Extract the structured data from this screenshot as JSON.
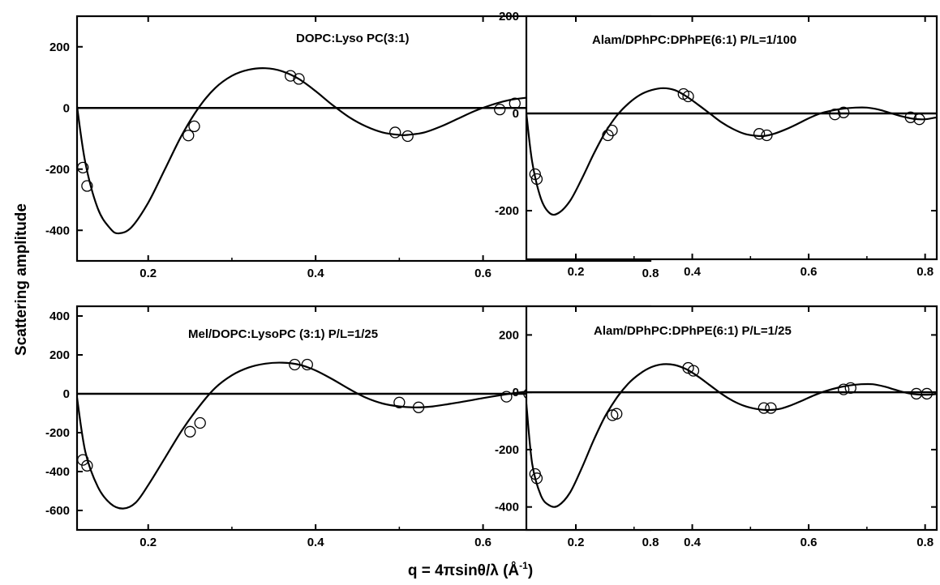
{
  "figure": {
    "ylabel": "Scattering amplitude",
    "xlabel_main": "q = 4πsinθ/λ (",
    "xlabel_unit": "Å",
    "xlabel_exp": "-1",
    "xlabel_close": ")"
  },
  "chart_data": [
    {
      "type": "line",
      "title": "DOPC:Lyso PC(3:1)",
      "xlim": [
        0.115,
        0.8
      ],
      "ylim": [
        -500,
        300
      ],
      "xticks": [
        "0.2",
        "0.4",
        "0.6",
        "0.8"
      ],
      "xtick_values": [
        0.2,
        0.4,
        0.6,
        0.8
      ],
      "yticks": [
        "-400",
        "-200",
        "0",
        "200"
      ],
      "ytick_values": [
        -400,
        -200,
        0,
        200
      ],
      "curve": {
        "x": [
          0.115,
          0.125,
          0.14,
          0.155,
          0.165,
          0.18,
          0.2,
          0.22,
          0.24,
          0.26,
          0.28,
          0.3,
          0.32,
          0.34,
          0.36,
          0.38,
          0.4,
          0.42,
          0.44,
          0.46,
          0.48,
          0.5,
          0.51,
          0.53,
          0.55,
          0.57,
          0.59,
          0.61,
          0.63,
          0.65,
          0.67,
          0.685,
          0.7,
          0.72,
          0.74,
          0.76,
          0.78,
          0.8
        ],
        "y": [
          5,
          -180,
          -330,
          -395,
          -410,
          -390,
          -310,
          -200,
          -90,
          0,
          65,
          105,
          125,
          130,
          120,
          95,
          55,
          10,
          -30,
          -60,
          -80,
          -88,
          -88,
          -80,
          -60,
          -35,
          -10,
          10,
          25,
          33,
          37,
          38,
          34,
          20,
          2,
          -12,
          -14,
          20
        ]
      },
      "points": {
        "x": [
          0.122,
          0.127,
          0.248,
          0.255,
          0.37,
          0.38,
          0.495,
          0.51,
          0.62,
          0.638,
          0.745,
          0.763
        ],
        "y": [
          -195,
          -255,
          -90,
          -60,
          105,
          95,
          -80,
          -92,
          -5,
          15,
          0,
          -18
        ]
      }
    },
    {
      "type": "line",
      "title": "Alam/DPhPC:DPhPE(6:1) P/L=1/100",
      "xlim": [
        0.115,
        0.82
      ],
      "ylim": [
        -300,
        200
      ],
      "xticks": [
        "0.2",
        "0.4",
        "0.6",
        "0.8"
      ],
      "xtick_values": [
        0.2,
        0.4,
        0.6,
        0.8
      ],
      "yticks": [
        "-200",
        "0",
        "200"
      ],
      "ytick_values": [
        -200,
        0,
        200
      ],
      "curve": {
        "x": [
          0.115,
          0.125,
          0.14,
          0.155,
          0.17,
          0.19,
          0.21,
          0.23,
          0.25,
          0.27,
          0.29,
          0.31,
          0.33,
          0.35,
          0.37,
          0.39,
          0.41,
          0.43,
          0.45,
          0.47,
          0.49,
          0.51,
          0.525,
          0.54,
          0.56,
          0.58,
          0.6,
          0.62,
          0.64,
          0.66,
          0.68,
          0.7,
          0.72,
          0.74,
          0.76,
          0.78,
          0.8,
          0.82
        ],
        "y": [
          0,
          -100,
          -175,
          -205,
          -205,
          -180,
          -135,
          -85,
          -40,
          -5,
          20,
          38,
          48,
          52,
          48,
          35,
          18,
          0,
          -18,
          -32,
          -42,
          -46,
          -46,
          -42,
          -33,
          -22,
          -10,
          0,
          6,
          10,
          12,
          12,
          8,
          1,
          -6,
          -11,
          -12,
          -8
        ]
      },
      "points": {
        "x": [
          0.13,
          0.133,
          0.255,
          0.262,
          0.385,
          0.393,
          0.515,
          0.528,
          0.645,
          0.66,
          0.775,
          0.79
        ],
        "y": [
          -125,
          -135,
          -45,
          -35,
          40,
          35,
          -42,
          -45,
          -2,
          2,
          -8,
          -12
        ]
      }
    },
    {
      "type": "line",
      "title": "Mel/DOPC:LysoPC (3:1) P/L=1/25",
      "xlim": [
        0.115,
        0.8
      ],
      "ylim": [
        -700,
        450
      ],
      "xticks": [
        "0.2",
        "0.4",
        "0.6",
        "0.8"
      ],
      "xtick_values": [
        0.2,
        0.4,
        0.6,
        0.8
      ],
      "yticks": [
        "-600",
        "-400",
        "-200",
        "0",
        "200",
        "400"
      ],
      "ytick_values": [
        -600,
        -400,
        -200,
        0,
        200,
        400
      ],
      "curve": {
        "x": [
          0.115,
          0.125,
          0.14,
          0.155,
          0.17,
          0.185,
          0.2,
          0.22,
          0.24,
          0.26,
          0.28,
          0.3,
          0.32,
          0.34,
          0.36,
          0.38,
          0.4,
          0.42,
          0.44,
          0.46,
          0.48,
          0.5,
          0.52,
          0.54,
          0.56,
          0.58,
          0.6,
          0.62,
          0.64,
          0.66,
          0.68,
          0.7,
          0.72,
          0.74,
          0.76,
          0.78,
          0.8
        ],
        "y": [
          -20,
          -300,
          -480,
          -565,
          -590,
          -560,
          -470,
          -330,
          -190,
          -70,
          30,
          95,
          135,
          155,
          160,
          150,
          120,
          75,
          25,
          -20,
          -50,
          -65,
          -70,
          -65,
          -52,
          -38,
          -22,
          -8,
          5,
          14,
          20,
          22,
          18,
          10,
          3,
          0,
          2
        ]
      },
      "points": {
        "x": [
          0.122,
          0.127,
          0.25,
          0.262,
          0.375,
          0.39,
          0.5,
          0.523,
          0.628,
          0.655,
          0.752,
          0.785
        ],
        "y": [
          -340,
          -370,
          -195,
          -150,
          150,
          150,
          -45,
          -70,
          -15,
          0,
          0,
          0
        ]
      }
    },
    {
      "type": "line",
      "title": "Alam/DPhPC:DPhPE(6:1) P/L=1/25",
      "xlim": [
        0.115,
        0.82
      ],
      "ylim": [
        -480,
        300
      ],
      "xticks": [
        "0.2",
        "0.4",
        "0.6",
        "0.8"
      ],
      "xtick_values": [
        0.2,
        0.4,
        0.6,
        0.8
      ],
      "yticks": [
        "-400",
        "-200",
        "0",
        "200"
      ],
      "ytick_values": [
        -400,
        -200,
        0,
        200
      ],
      "curve": {
        "x": [
          0.115,
          0.125,
          0.14,
          0.155,
          0.17,
          0.19,
          0.21,
          0.23,
          0.25,
          0.27,
          0.29,
          0.31,
          0.33,
          0.35,
          0.37,
          0.39,
          0.41,
          0.43,
          0.45,
          0.47,
          0.49,
          0.51,
          0.53,
          0.55,
          0.57,
          0.59,
          0.61,
          0.63,
          0.65,
          0.67,
          0.69,
          0.71,
          0.73,
          0.75,
          0.77,
          0.79,
          0.81,
          0.82
        ],
        "y": [
          -40,
          -250,
          -360,
          -395,
          -395,
          -350,
          -265,
          -170,
          -85,
          -20,
          30,
          65,
          88,
          98,
          95,
          80,
          55,
          25,
          -5,
          -30,
          -48,
          -58,
          -62,
          -58,
          -45,
          -28,
          -10,
          5,
          16,
          24,
          28,
          28,
          20,
          8,
          -3,
          -8,
          -8,
          -6
        ]
      },
      "points": {
        "x": [
          0.13,
          0.133,
          0.263,
          0.27,
          0.393,
          0.402,
          0.523,
          0.535,
          0.66,
          0.672,
          0.785,
          0.803
        ],
        "y": [
          -285,
          -300,
          -80,
          -75,
          85,
          75,
          -55,
          -55,
          10,
          15,
          -5,
          -5
        ]
      }
    }
  ]
}
